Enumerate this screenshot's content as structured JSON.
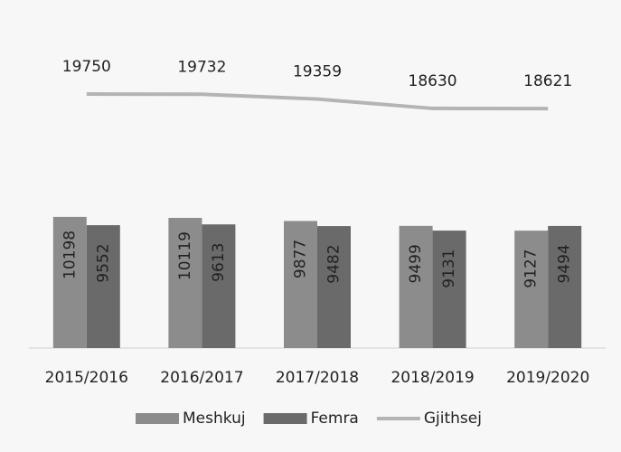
{
  "chart_data": {
    "type": "bar",
    "categories": [
      "2015/2016",
      "2016/2017",
      "2017/2018",
      "2018/2019",
      "2019/2020"
    ],
    "series": [
      {
        "name": "Meshkuj",
        "color": "#8c8c8c",
        "values": [
          10198,
          10119,
          9877,
          9499,
          9127
        ]
      },
      {
        "name": "Femra",
        "color": "#6a6a6a",
        "values": [
          9552,
          9613,
          9482,
          9131,
          9494
        ]
      },
      {
        "name": "Gjithsej",
        "color": "#b4b4b4",
        "type": "line",
        "values": [
          19750,
          19732,
          19359,
          18630,
          18621
        ]
      }
    ],
    "legend": "bottom"
  }
}
